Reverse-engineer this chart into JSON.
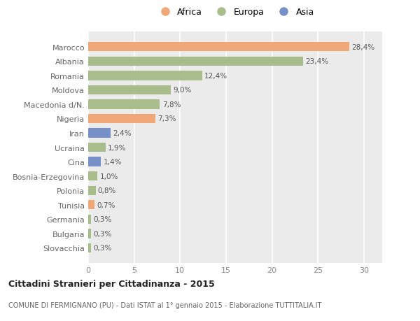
{
  "categories": [
    "Marocco",
    "Albania",
    "Romania",
    "Moldova",
    "Macedonia d/N.",
    "Nigeria",
    "Iran",
    "Ucraina",
    "Cina",
    "Bosnia-Erzegovina",
    "Polonia",
    "Tunisia",
    "Germania",
    "Bulgaria",
    "Slovacchia"
  ],
  "values": [
    28.4,
    23.4,
    12.4,
    9.0,
    7.8,
    7.3,
    2.4,
    1.9,
    1.4,
    1.0,
    0.8,
    0.7,
    0.3,
    0.3,
    0.3
  ],
  "labels": [
    "28,4%",
    "23,4%",
    "12,4%",
    "9,0%",
    "7,8%",
    "7,3%",
    "2,4%",
    "1,9%",
    "1,4%",
    "1,0%",
    "0,8%",
    "0,7%",
    "0,3%",
    "0,3%",
    "0,3%"
  ],
  "colors": [
    "#f0a878",
    "#a8bc8c",
    "#a8bc8c",
    "#a8bc8c",
    "#a8bc8c",
    "#f0a878",
    "#7890c8",
    "#a8bc8c",
    "#7890c8",
    "#a8bc8c",
    "#a8bc8c",
    "#f0a878",
    "#a8bc8c",
    "#a8bc8c",
    "#a8bc8c"
  ],
  "legend_labels": [
    "Africa",
    "Europa",
    "Asia"
  ],
  "legend_colors": [
    "#f0a878",
    "#a8bc8c",
    "#7890c8"
  ],
  "title": "Cittadini Stranieri per Cittadinanza - 2015",
  "subtitle": "COMUNE DI FERMIGNANO (PU) - Dati ISTAT al 1° gennaio 2015 - Elaborazione TUTTITALIA.IT",
  "xlim": [
    0,
    32
  ],
  "xticks": [
    0,
    5,
    10,
    15,
    20,
    25,
    30
  ],
  "background_color": "#ffffff",
  "bar_background": "#ebebeb",
  "grid_color": "#ffffff"
}
